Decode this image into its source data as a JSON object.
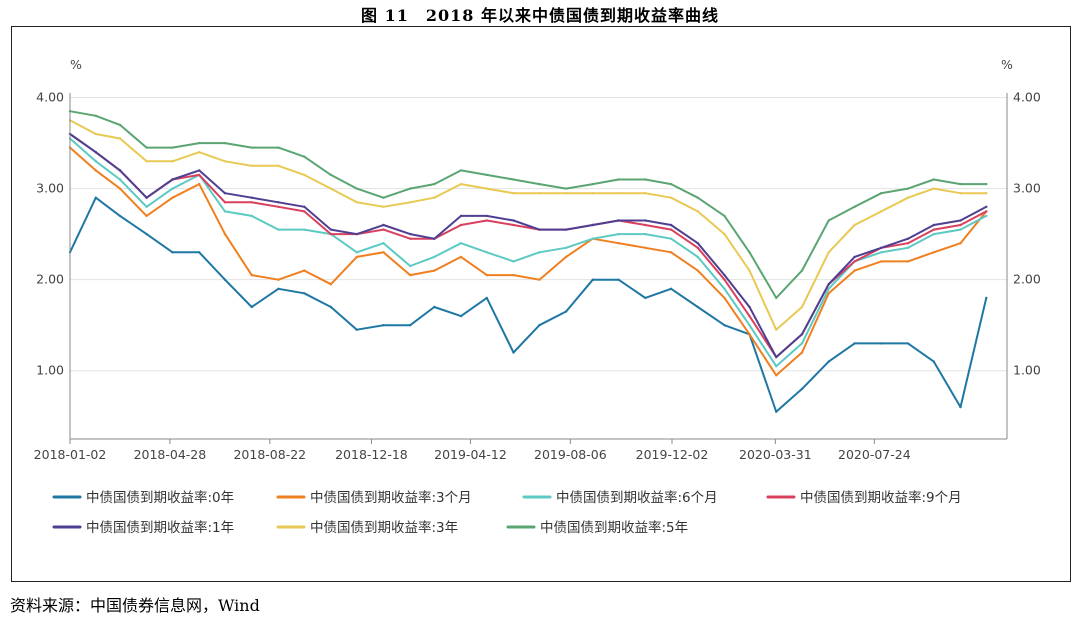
{
  "figure": {
    "title": "图 11　2018 年以来中债国债到期收益率曲线",
    "source": "资料来源：中国债券信息网，Wind"
  },
  "chart_data": {
    "type": "line",
    "ylabel_left": "%",
    "ylabel_right": "%",
    "ylim": [
      0.25,
      4.05
    ],
    "y_ticks": [
      "1.00",
      "2.00",
      "3.00",
      "4.00"
    ],
    "y_tick_values": [
      1,
      2,
      3,
      4
    ],
    "x_ticks": [
      "2018-01-02",
      "2018-04-28",
      "2018-08-22",
      "2018-12-18",
      "2019-04-12",
      "2019-08-06",
      "2019-12-02",
      "2020-03-31",
      "2020-07-24"
    ],
    "grid": true,
    "legend_position": "bottom",
    "x": [
      "2018-01-02",
      "2018-02-01",
      "2018-03-01",
      "2018-04-01",
      "2018-05-01",
      "2018-06-01",
      "2018-07-01",
      "2018-08-01",
      "2018-09-01",
      "2018-10-01",
      "2018-11-01",
      "2018-12-01",
      "2019-01-01",
      "2019-02-01",
      "2019-03-01",
      "2019-04-01",
      "2019-05-01",
      "2019-06-01",
      "2019-07-01",
      "2019-08-01",
      "2019-09-01",
      "2019-10-01",
      "2019-11-01",
      "2019-12-01",
      "2020-01-01",
      "2020-02-01",
      "2020-03-01",
      "2020-04-01",
      "2020-05-01",
      "2020-06-01",
      "2020-07-01",
      "2020-08-01",
      "2020-09-01",
      "2020-10-01",
      "2020-11-01",
      "2020-12-01"
    ],
    "series": [
      {
        "name": "中债国债到期收益率:0年",
        "color": "#1f77a4",
        "values": [
          2.3,
          2.9,
          2.7,
          2.5,
          2.3,
          2.3,
          2.0,
          1.7,
          1.9,
          1.85,
          1.7,
          1.45,
          1.5,
          1.5,
          1.7,
          1.6,
          1.8,
          1.2,
          1.5,
          1.65,
          2.0,
          2.0,
          1.8,
          1.9,
          1.7,
          1.5,
          1.4,
          0.55,
          0.8,
          1.1,
          1.3,
          1.3,
          1.3,
          1.1,
          0.6,
          1.8
        ]
      },
      {
        "name": "中债国债到期收益率:3个月",
        "color": "#f07f1f",
        "values": [
          3.45,
          3.2,
          3.0,
          2.7,
          2.9,
          3.05,
          2.5,
          2.05,
          2.0,
          2.1,
          1.95,
          2.25,
          2.3,
          2.05,
          2.1,
          2.25,
          2.05,
          2.05,
          2.0,
          2.25,
          2.45,
          2.4,
          2.35,
          2.3,
          2.1,
          1.8,
          1.4,
          0.95,
          1.2,
          1.85,
          2.1,
          2.2,
          2.2,
          2.3,
          2.4,
          2.75
        ]
      },
      {
        "name": "中债国债到期收益率:6个月",
        "color": "#5cc9c3",
        "values": [
          3.55,
          3.3,
          3.1,
          2.8,
          3.0,
          3.15,
          2.75,
          2.7,
          2.55,
          2.55,
          2.5,
          2.3,
          2.4,
          2.15,
          2.25,
          2.4,
          2.3,
          2.2,
          2.3,
          2.35,
          2.45,
          2.5,
          2.5,
          2.45,
          2.25,
          1.9,
          1.5,
          1.05,
          1.3,
          1.9,
          2.2,
          2.3,
          2.35,
          2.5,
          2.55,
          2.7
        ]
      },
      {
        "name": "中债国债到期收益率:9个月",
        "color": "#d9405e",
        "values": [
          3.6,
          3.4,
          3.2,
          2.9,
          3.1,
          3.15,
          2.85,
          2.85,
          2.8,
          2.75,
          2.5,
          2.5,
          2.55,
          2.45,
          2.45,
          2.6,
          2.65,
          2.6,
          2.55,
          2.55,
          2.6,
          2.65,
          2.6,
          2.55,
          2.35,
          2.0,
          1.6,
          1.15,
          1.4,
          1.95,
          2.2,
          2.35,
          2.4,
          2.55,
          2.6,
          2.75
        ]
      },
      {
        "name": "中债国债到期收益率:1年",
        "color": "#4f3f93",
        "values": [
          3.6,
          3.4,
          3.2,
          2.9,
          3.1,
          3.2,
          2.95,
          2.9,
          2.85,
          2.8,
          2.55,
          2.5,
          2.6,
          2.5,
          2.45,
          2.7,
          2.7,
          2.65,
          2.55,
          2.55,
          2.6,
          2.65,
          2.65,
          2.6,
          2.4,
          2.05,
          1.7,
          1.15,
          1.4,
          1.95,
          2.25,
          2.35,
          2.45,
          2.6,
          2.65,
          2.8
        ]
      },
      {
        "name": "中债国债到期收益率:3年",
        "color": "#e8c954",
        "values": [
          3.75,
          3.6,
          3.55,
          3.3,
          3.3,
          3.4,
          3.3,
          3.25,
          3.25,
          3.15,
          3.0,
          2.85,
          2.8,
          2.85,
          2.9,
          3.05,
          3.0,
          2.95,
          2.95,
          2.95,
          2.95,
          2.95,
          2.95,
          2.9,
          2.75,
          2.5,
          2.1,
          1.45,
          1.7,
          2.3,
          2.6,
          2.75,
          2.9,
          3.0,
          2.95,
          2.95
        ]
      },
      {
        "name": "中债国债到期收益率:5年",
        "color": "#5aa572",
        "values": [
          3.85,
          3.8,
          3.7,
          3.45,
          3.45,
          3.5,
          3.5,
          3.45,
          3.45,
          3.35,
          3.15,
          3.0,
          2.9,
          3.0,
          3.05,
          3.2,
          3.15,
          3.1,
          3.05,
          3.0,
          3.05,
          3.1,
          3.1,
          3.05,
          2.9,
          2.7,
          2.3,
          1.8,
          2.1,
          2.65,
          2.8,
          2.95,
          3.0,
          3.1,
          3.05,
          3.05
        ]
      }
    ]
  }
}
